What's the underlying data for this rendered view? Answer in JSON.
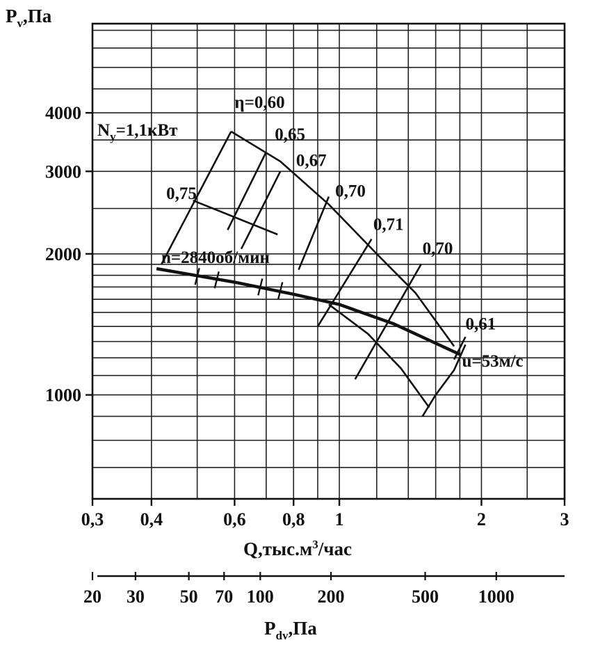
{
  "chart_data": {
    "type": "line",
    "yaxis": {
      "label_main": "P",
      "label_sub": "v",
      "label_unit": ",Па",
      "scale": "log",
      "range": [
        600,
        6200
      ],
      "ticks": [
        {
          "value": 1000,
          "label": "1000"
        },
        {
          "value": 2000,
          "label": "2000"
        },
        {
          "value": 3000,
          "label": "3000"
        },
        {
          "value": 4000,
          "label": "4000"
        }
      ],
      "grid": [
        700,
        800,
        900,
        1000,
        1100,
        1200,
        1300,
        1400,
        1500,
        1600,
        1700,
        1800,
        1900,
        2000,
        2500,
        3000,
        3500,
        4000,
        4500,
        5000,
        5500,
        6000
      ]
    },
    "xaxis": {
      "label_main": "Q,тыс.м",
      "label_sup": "3",
      "label_rest": "/час",
      "scale": "log",
      "range": [
        0.3,
        3
      ],
      "ticks": [
        {
          "value": 0.3,
          "label": "0,3"
        },
        {
          "value": 0.4,
          "label": "0,4"
        },
        {
          "value": 0.6,
          "label": "0,6"
        },
        {
          "value": 0.8,
          "label": "0,8"
        },
        {
          "value": 1,
          "label": "1"
        },
        {
          "value": 2,
          "label": "2"
        },
        {
          "value": 3,
          "label": "3"
        }
      ],
      "grid": [
        0.4,
        0.5,
        0.6,
        0.7,
        0.8,
        0.9,
        1,
        1.2,
        1.4,
        1.6,
        1.8,
        2,
        2.5
      ]
    },
    "paxis": {
      "label_main": "P",
      "label_sub": "dv",
      "label_unit": ",Па",
      "ticks": [
        {
          "value": 20,
          "label": "20",
          "q": 0.3
        },
        {
          "value": 30,
          "label": "30",
          "q": 0.37
        },
        {
          "value": 50,
          "label": "50",
          "q": 0.48
        },
        {
          "value": 70,
          "label": "70",
          "q": 0.57
        },
        {
          "value": 100,
          "label": "100",
          "q": 0.68
        },
        {
          "value": 200,
          "label": "200",
          "q": 0.96
        },
        {
          "value": 500,
          "label": "500",
          "q": 1.52
        },
        {
          "value": 1000,
          "label": "1000",
          "q": 2.15
        }
      ]
    },
    "series": [
      {
        "name": "n=2840об/мин",
        "role": "main",
        "points": [
          [
            0.41,
            1860
          ],
          [
            0.6,
            1740
          ],
          [
            0.8,
            1640
          ],
          [
            1.0,
            1560
          ],
          [
            1.3,
            1420
          ],
          [
            1.8,
            1220
          ]
        ]
      },
      {
        "name": "Ny=1,1кВт",
        "role": "power",
        "points": [
          [
            0.42,
            1900
          ],
          [
            0.59,
            3650
          ]
        ]
      },
      {
        "name": "upper-envelope",
        "role": "envelope",
        "points": [
          [
            0.59,
            3650
          ],
          [
            0.75,
            3150
          ],
          [
            0.95,
            2550
          ],
          [
            1.2,
            2000
          ],
          [
            1.45,
            1650
          ],
          [
            1.75,
            1270
          ]
        ]
      },
      {
        "name": "lower-envelope",
        "role": "envelope",
        "points": [
          [
            0.95,
            1560
          ],
          [
            1.15,
            1350
          ],
          [
            1.35,
            1140
          ],
          [
            1.55,
            940
          ]
        ]
      },
      {
        "name": "speed-edge",
        "role": "envelope",
        "points": [
          [
            1.5,
            900
          ],
          [
            1.6,
            1000
          ],
          [
            1.75,
            1130
          ],
          [
            1.85,
            1280
          ]
        ]
      }
    ],
    "efficiency_lines": [
      {
        "label": "η=0,60",
        "from": [
          0.59,
          3650
        ],
        "to": [
          0.59,
          3650
        ],
        "label_at": [
          0.6,
          4100
        ]
      },
      {
        "label": "0,65",
        "from": [
          0.58,
          2250
        ],
        "to": [
          0.7,
          3300
        ],
        "label_at": [
          0.73,
          3500
        ]
      },
      {
        "label": "0,67",
        "from": [
          0.62,
          2050
        ],
        "to": [
          0.75,
          3000
        ],
        "label_at": [
          0.81,
          3080
        ]
      },
      {
        "label": "0,70",
        "from": [
          0.82,
          1850
        ],
        "to": [
          0.95,
          2650
        ],
        "label_at": [
          0.98,
          2650
        ]
      },
      {
        "label": "0,71",
        "from": [
          0.9,
          1400
        ],
        "to": [
          1.17,
          2150
        ],
        "label_at": [
          1.18,
          2250
        ]
      },
      {
        "label": "0,70",
        "from": [
          1.08,
          1080
        ],
        "to": [
          1.49,
          1900
        ],
        "label_at": [
          1.5,
          2000
        ]
      },
      {
        "label": "0,61",
        "from": [
          1.75,
          1190
        ],
        "to": [
          1.85,
          1330
        ],
        "label_at": [
          1.85,
          1380
        ]
      },
      {
        "label": "0,75",
        "from": [
          0.49,
          2600
        ],
        "to": [
          0.74,
          2200
        ],
        "label_at": [
          0.43,
          2620
        ]
      }
    ],
    "annotations": [
      {
        "text": "u=53м/с",
        "at": [
          1.85,
          1180
        ]
      }
    ],
    "grid": true
  }
}
